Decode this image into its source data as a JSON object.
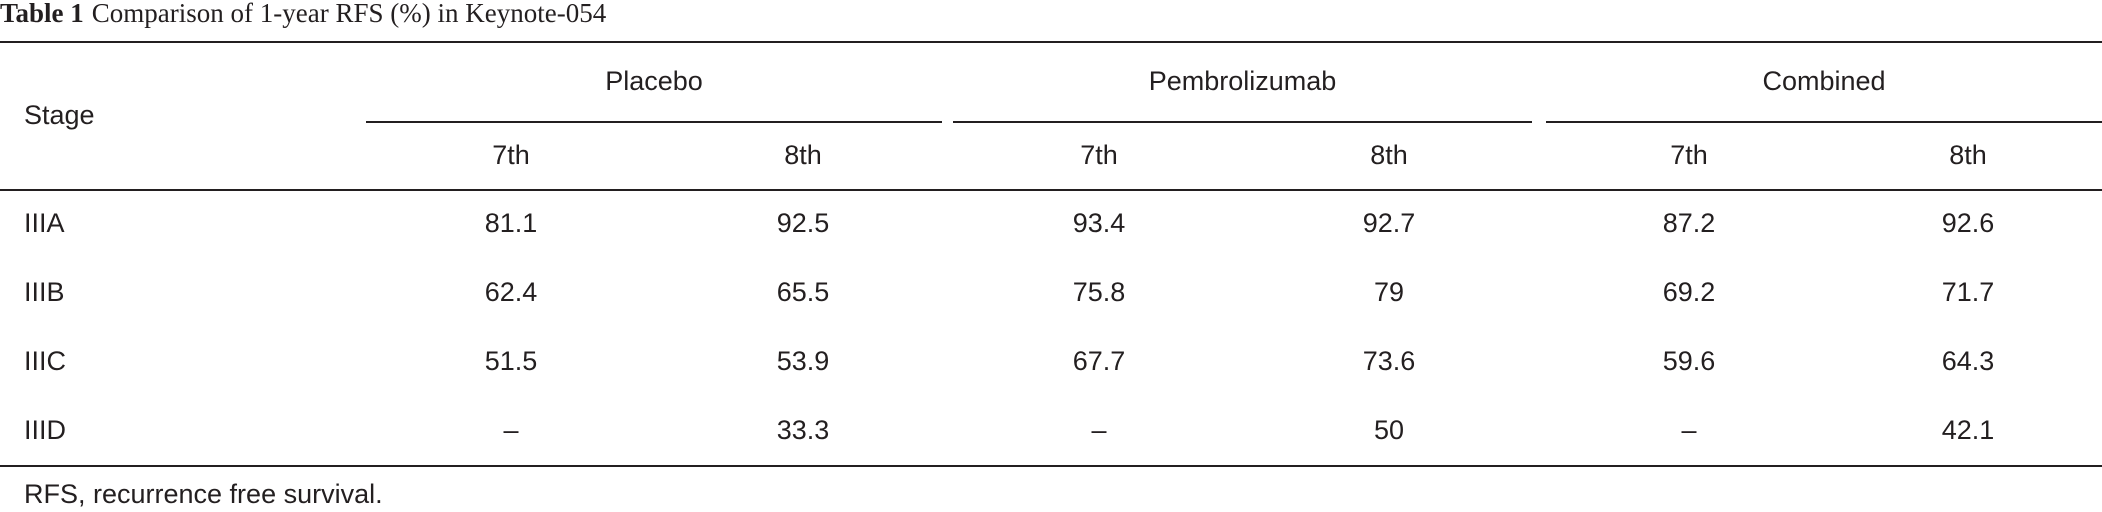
{
  "title": {
    "label": "Table 1",
    "text": "Comparison of 1-year RFS (%) in Keynote-054"
  },
  "table": {
    "stub_header": "Stage",
    "groups": [
      {
        "name": "Placebo",
        "columns": [
          "7th",
          "8th"
        ]
      },
      {
        "name": "Pembrolizumab",
        "columns": [
          "7th",
          "8th"
        ]
      },
      {
        "name": "Combined",
        "columns": [
          "7th",
          "8th"
        ]
      }
    ],
    "rows": [
      [
        "IIIA",
        81.1,
        92.5,
        93.4,
        92.7,
        87.2,
        92.6
      ],
      [
        "IIIB",
        62.4,
        65.5,
        75.8,
        79,
        69.2,
        71.7
      ],
      [
        "IIIC",
        51.5,
        53.9,
        67.7,
        73.6,
        59.6,
        64.3
      ],
      [
        "IIID",
        "–",
        33.3,
        "–",
        50,
        "–",
        42.1
      ]
    ]
  },
  "footnote": "RFS, recurrence free survival."
}
